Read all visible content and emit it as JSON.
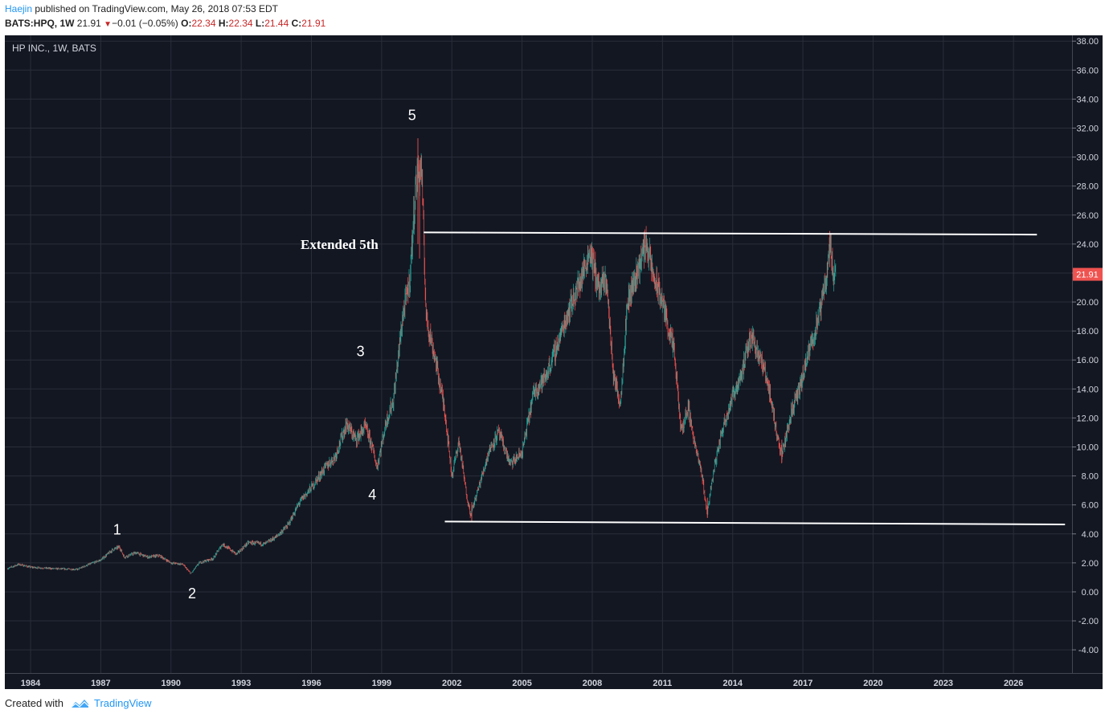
{
  "header": {
    "author": "Haejin",
    "published_text": " published on TradingView.com, May 26, 2018 07:53 EDT",
    "symbol": "BATS:HPQ, 1W",
    "last": "21.91",
    "change": "−0.01 (−0.05%)",
    "open_label": "O:",
    "open": "22.34",
    "high_label": "H:",
    "high": "22.34",
    "low_label": "L:",
    "low": "21.44",
    "close_label": "C:",
    "close": "21.91"
  },
  "chart_title": "HP INC., 1W, BATS",
  "footer": {
    "created_with": "Created with",
    "brand": "TradingView"
  },
  "colors": {
    "background": "#131722",
    "grid": "#2a2e39",
    "axis_text": "#d1d4dc",
    "up": "#26a69a",
    "down": "#ef5350",
    "price_tag": "#ef5350",
    "annotation": "#ffffff"
  },
  "chart_data": {
    "type": "candlestick",
    "title": "HP INC., 1W, BATS",
    "x_ticks": [
      "1984",
      "1987",
      "1990",
      "1993",
      "1996",
      "1999",
      "2002",
      "2005",
      "2008",
      "2011",
      "2014",
      "2017",
      "2020",
      "2023",
      "2026"
    ],
    "x_range": [
      1982.9,
      2028.5
    ],
    "y_ticks": [
      "38.00",
      "36.00",
      "34.00",
      "32.00",
      "30.00",
      "28.00",
      "26.00",
      "24.00",
      "22.00",
      "20.00",
      "18.00",
      "16.00",
      "14.00",
      "12.00",
      "10.00",
      "8.00",
      "6.00",
      "4.00",
      "2.00",
      "0.00",
      "-2.00",
      "-4.00"
    ],
    "ylim": [
      -5.6,
      38.4
    ],
    "last_price": "21.91",
    "price_path": [
      [
        1983.0,
        1.6
      ],
      [
        1983.5,
        1.9
      ],
      [
        1984.0,
        1.7
      ],
      [
        1985.0,
        1.6
      ],
      [
        1986.0,
        1.55
      ],
      [
        1986.5,
        1.9
      ],
      [
        1987.0,
        2.2
      ],
      [
        1987.5,
        2.9
      ],
      [
        1987.8,
        3.1
      ],
      [
        1988.0,
        2.4
      ],
      [
        1988.5,
        2.7
      ],
      [
        1989.0,
        2.4
      ],
      [
        1989.5,
        2.5
      ],
      [
        1990.0,
        2.0
      ],
      [
        1990.5,
        1.9
      ],
      [
        1990.85,
        1.25
      ],
      [
        1991.2,
        2.0
      ],
      [
        1991.8,
        2.3
      ],
      [
        1992.2,
        3.3
      ],
      [
        1992.8,
        2.6
      ],
      [
        1993.3,
        3.4
      ],
      [
        1994.0,
        3.3
      ],
      [
        1994.5,
        3.8
      ],
      [
        1995.0,
        4.6
      ],
      [
        1995.5,
        6.2
      ],
      [
        1996.0,
        7.2
      ],
      [
        1996.6,
        8.6
      ],
      [
        1997.0,
        9.3
      ],
      [
        1997.5,
        11.6
      ],
      [
        1997.9,
        10.5
      ],
      [
        1998.3,
        11.4
      ],
      [
        1998.6,
        10.0
      ],
      [
        1998.8,
        8.6
      ],
      [
        1999.2,
        11.8
      ],
      [
        1999.5,
        13.2
      ],
      [
        1999.9,
        19.0
      ],
      [
        2000.2,
        21.5
      ],
      [
        2000.45,
        28.0
      ],
      [
        2000.7,
        29.5
      ],
      [
        2000.9,
        19.0
      ],
      [
        2001.3,
        16.0
      ],
      [
        2001.7,
        12.5
      ],
      [
        2002.0,
        8.0
      ],
      [
        2002.3,
        10.4
      ],
      [
        2002.6,
        7.0
      ],
      [
        2002.8,
        5.3
      ],
      [
        2003.2,
        7.5
      ],
      [
        2003.6,
        9.8
      ],
      [
        2004.0,
        11.0
      ],
      [
        2004.5,
        8.8
      ],
      [
        2005.0,
        9.6
      ],
      [
        2005.5,
        13.8
      ],
      [
        2006.0,
        14.8
      ],
      [
        2006.5,
        17.0
      ],
      [
        2007.0,
        19.5
      ],
      [
        2007.5,
        21.5
      ],
      [
        2007.9,
        23.6
      ],
      [
        2008.3,
        20.8
      ],
      [
        2008.6,
        21.6
      ],
      [
        2008.9,
        15.0
      ],
      [
        2009.2,
        13.0
      ],
      [
        2009.5,
        20.0
      ],
      [
        2010.0,
        22.5
      ],
      [
        2010.3,
        24.2
      ],
      [
        2010.6,
        21.8
      ],
      [
        2011.0,
        20.0
      ],
      [
        2011.5,
        16.5
      ],
      [
        2011.8,
        11.0
      ],
      [
        2012.1,
        12.8
      ],
      [
        2012.4,
        10.0
      ],
      [
        2012.7,
        8.0
      ],
      [
        2012.9,
        5.4
      ],
      [
        2013.2,
        8.5
      ],
      [
        2013.6,
        11.5
      ],
      [
        2014.0,
        13.5
      ],
      [
        2014.4,
        15.2
      ],
      [
        2014.8,
        17.8
      ],
      [
        2015.1,
        16.5
      ],
      [
        2015.5,
        14.5
      ],
      [
        2015.9,
        10.8
      ],
      [
        2016.1,
        9.4
      ],
      [
        2016.5,
        12.4
      ],
      [
        2016.9,
        14.2
      ],
      [
        2017.3,
        16.8
      ],
      [
        2017.7,
        19.0
      ],
      [
        2018.0,
        21.8
      ],
      [
        2018.15,
        24.2
      ],
      [
        2018.3,
        22.0
      ],
      [
        2018.4,
        21.91
      ]
    ],
    "trendlines": [
      {
        "from": [
          2000.8,
          24.8
        ],
        "to": [
          2027.0,
          24.65
        ]
      },
      {
        "from": [
          2001.7,
          4.85
        ],
        "to": [
          2028.2,
          4.65
        ]
      }
    ],
    "annotations": [
      {
        "text": "1",
        "x": 1987.7,
        "y": 4.3
      },
      {
        "text": "2",
        "x": 1990.9,
        "y": -0.1
      },
      {
        "text": "3",
        "x": 1998.1,
        "y": 16.6
      },
      {
        "text": "4",
        "x": 1998.6,
        "y": 6.7
      },
      {
        "text": "5",
        "x": 2000.3,
        "y": 32.9
      },
      {
        "text": "Extended 5th",
        "x": 1997.2,
        "y": 24.0,
        "bold": true
      }
    ]
  }
}
